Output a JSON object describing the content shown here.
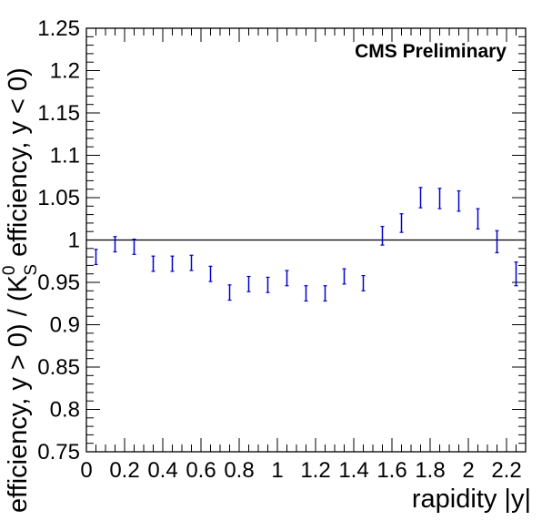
{
  "chart_data": {
    "type": "scatter",
    "title": "",
    "annotation": "CMS Preliminary",
    "xlabel": "rapidity |y|",
    "ylabel": {
      "prefix": "efficiency, y > 0) / (K",
      "sup": "0",
      "sub": "S",
      "suffix": " efficiency, y < 0)"
    },
    "xlim": [
      0,
      2.3
    ],
    "ylim": [
      0.75,
      1.25
    ],
    "x_ticks": [
      0,
      0.2,
      0.4,
      0.6,
      0.8,
      1,
      1.2,
      1.4,
      1.6,
      1.8,
      2,
      2.2
    ],
    "x_tick_labels": [
      "0",
      "0.2",
      "0.4",
      "0.6",
      "0.8",
      "1",
      "1.2",
      "1.4",
      "1.6",
      "1.8",
      "2",
      "2.2"
    ],
    "y_ticks": [
      0.75,
      0.8,
      0.85,
      0.9,
      0.95,
      1,
      1.05,
      1.1,
      1.15,
      1.2,
      1.25
    ],
    "y_tick_labels": [
      "0.75",
      "0.8",
      "0.85",
      "0.9",
      "0.95",
      "1",
      "1.05",
      "1.1",
      "1.15",
      "1.2",
      "1.25"
    ],
    "reference_line": 1.0,
    "grid": false,
    "colors": {
      "points": "#0000cc",
      "reference_line": "#000000",
      "axes": "#000000"
    },
    "series": [
      {
        "x": [
          0.05,
          0.15,
          0.25,
          0.35,
          0.45,
          0.55,
          0.65,
          0.75,
          0.85,
          0.95,
          1.05,
          1.15,
          1.25,
          1.35,
          1.45,
          1.55,
          1.65,
          1.75,
          1.85,
          1.95,
          2.05,
          2.15,
          2.25
        ],
        "y": [
          0.98,
          0.995,
          0.992,
          0.972,
          0.972,
          0.973,
          0.96,
          0.938,
          0.948,
          0.947,
          0.955,
          0.937,
          0.937,
          0.957,
          0.949,
          1.005,
          1.02,
          1.05,
          1.049,
          1.046,
          1.025,
          0.998,
          0.96
        ],
        "yerr": [
          0.009,
          0.009,
          0.009,
          0.009,
          0.009,
          0.009,
          0.009,
          0.009,
          0.009,
          0.009,
          0.009,
          0.009,
          0.009,
          0.009,
          0.009,
          0.011,
          0.011,
          0.012,
          0.012,
          0.012,
          0.012,
          0.013,
          0.014
        ]
      }
    ]
  }
}
